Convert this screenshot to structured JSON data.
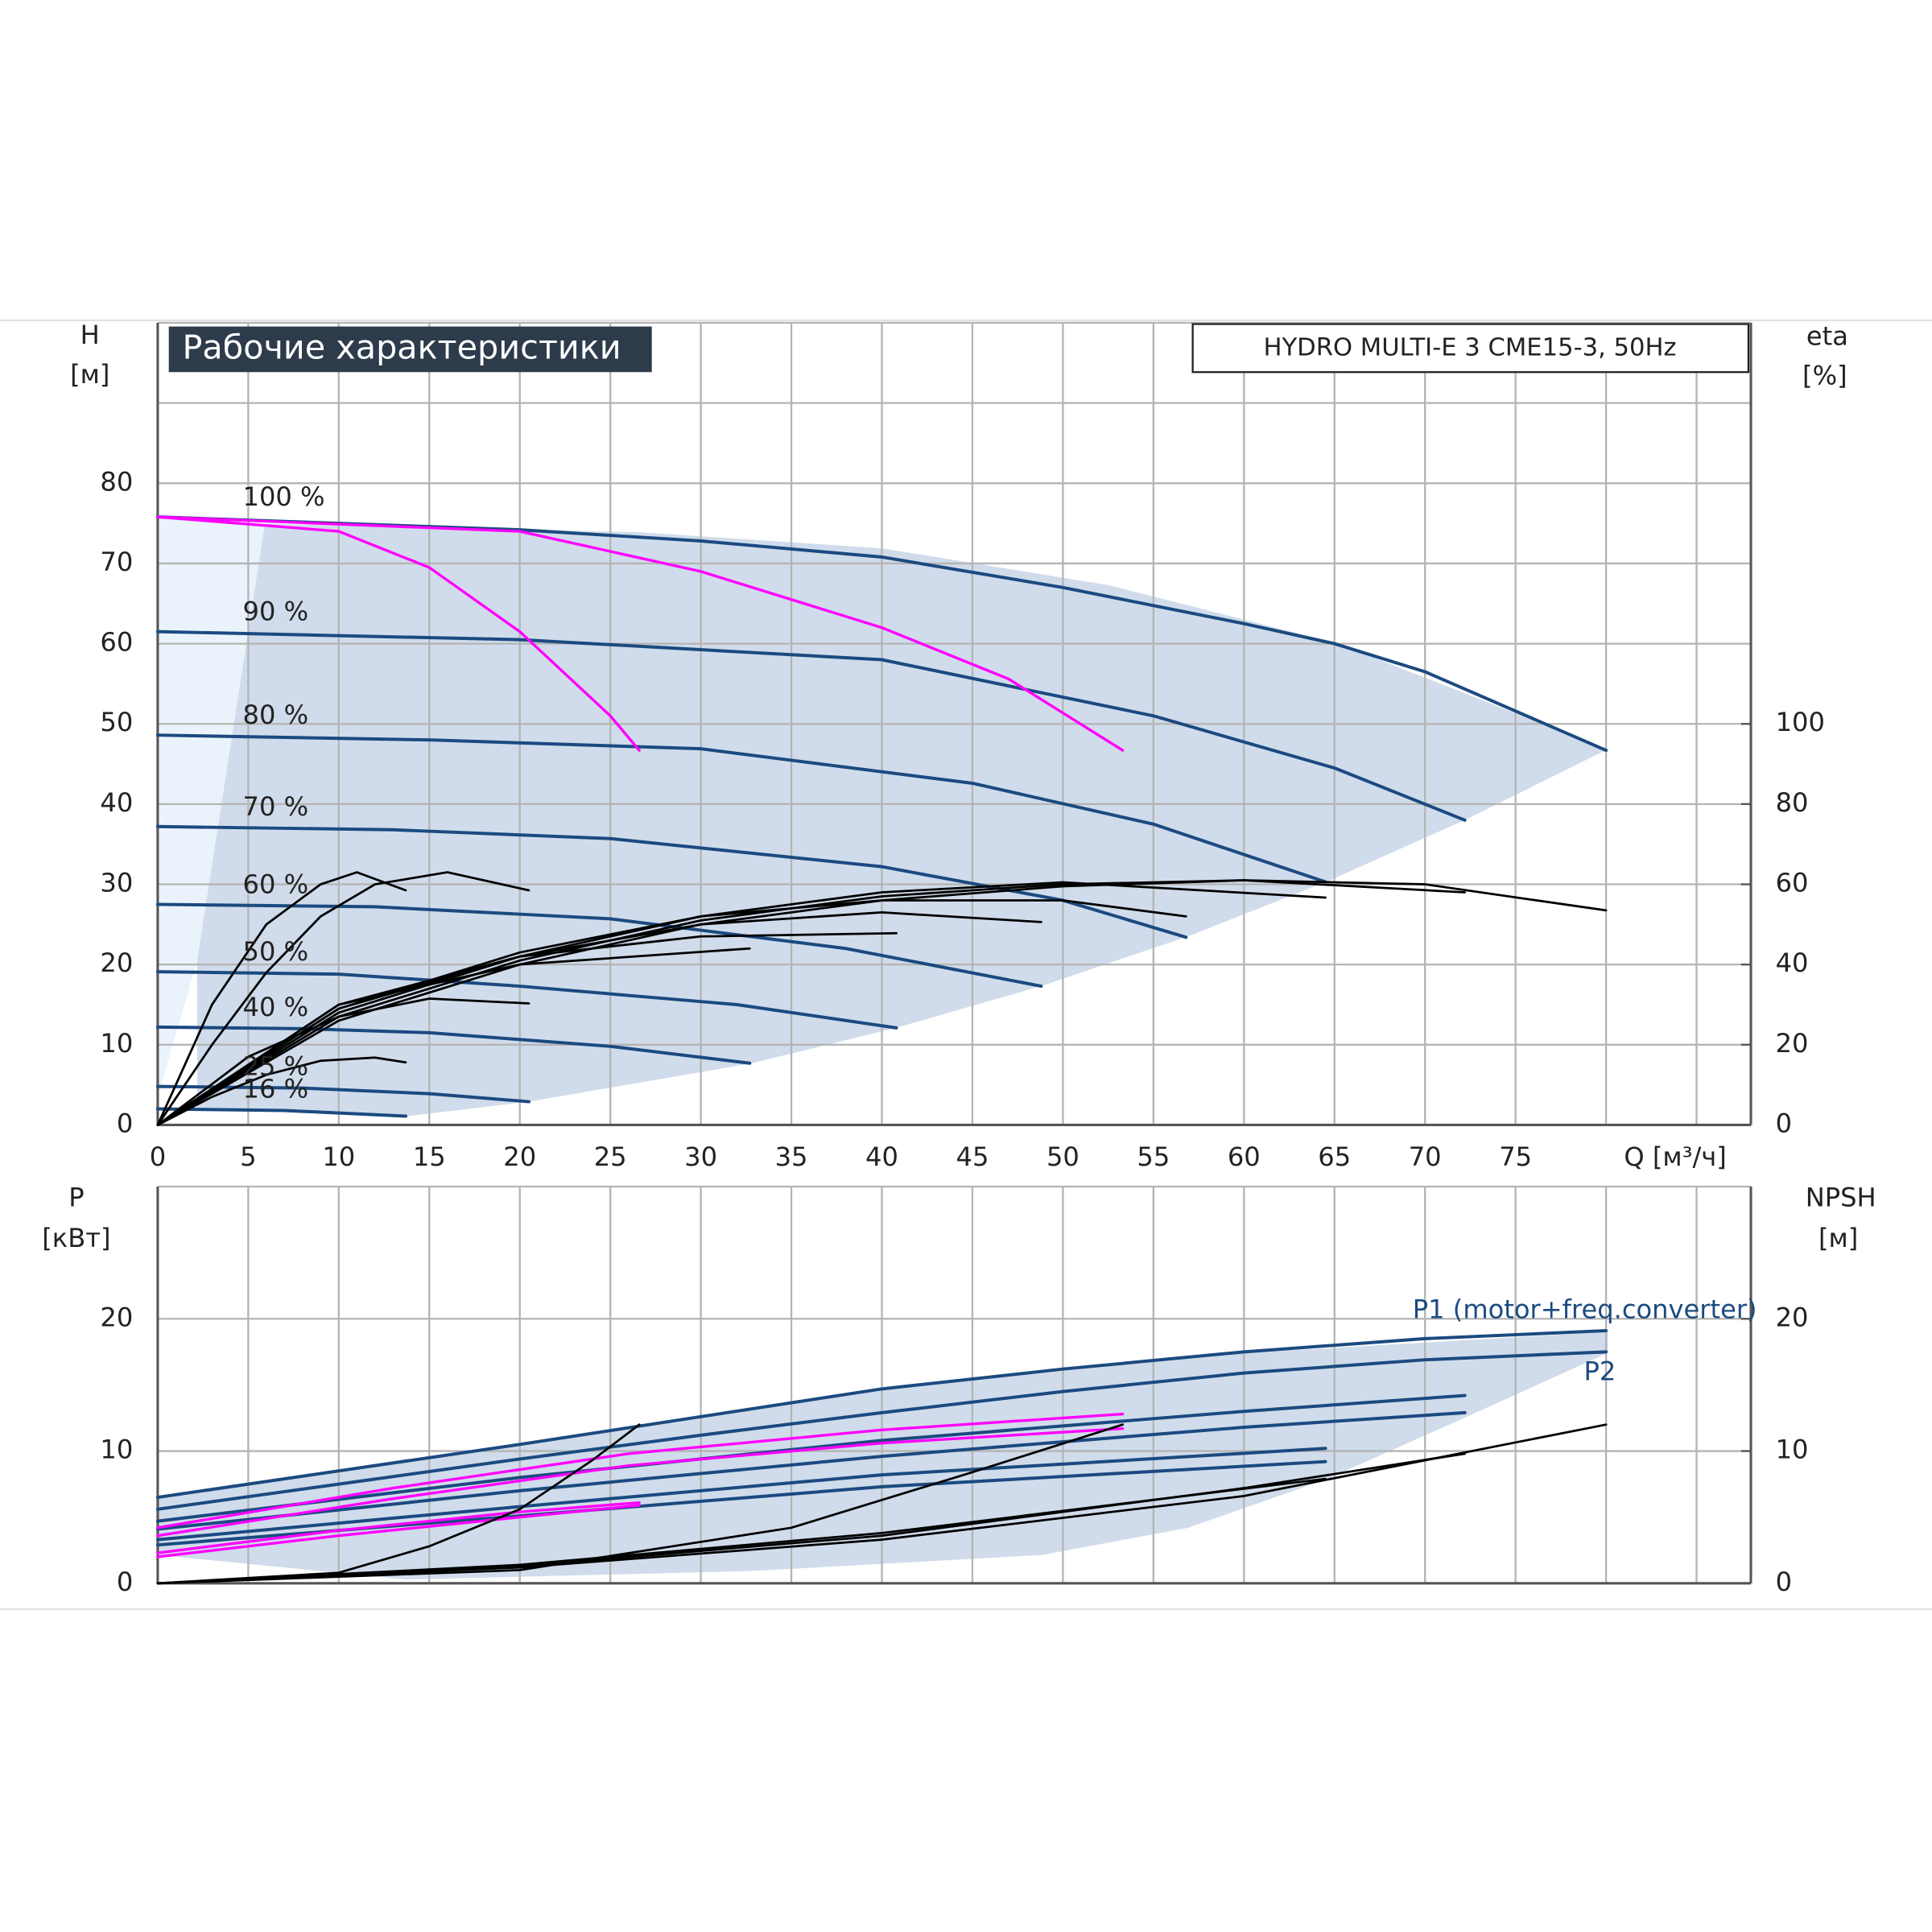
{
  "chart_data": [
    {
      "type": "line",
      "title": "Рабочие характеристики",
      "subtitle": "HYDRO MULTI-E 3 CME15-3, 50Hz",
      "y_label": "H",
      "y_unit": "[м]",
      "y2_label": "eta",
      "y2_unit": "[%]",
      "x_label": "Q [м³/ч]",
      "xlim": [
        0,
        88
      ],
      "xticks": [
        0,
        5,
        10,
        15,
        20,
        25,
        30,
        35,
        40,
        45,
        50,
        55,
        60,
        65,
        70,
        75
      ],
      "ylim": [
        0,
        100
      ],
      "yticks": [
        0,
        10,
        20,
        30,
        40,
        50,
        60,
        70,
        80
      ],
      "y2lim": [
        0,
        200
      ],
      "y2ticks": [
        0,
        20,
        40,
        60,
        80,
        100
      ],
      "grid": true,
      "series": [
        {
          "name": "100 %",
          "color": "#1b4a80",
          "x": [
            0,
            10,
            20,
            30,
            40,
            50,
            60,
            65,
            70,
            80
          ],
          "values": [
            75.8,
            75,
            74.2,
            72.8,
            70.8,
            67,
            62.5,
            60,
            56.5,
            46.7
          ]
        },
        {
          "name": "90 %",
          "color": "#1b4a80",
          "x": [
            0,
            20,
            40,
            55,
            65,
            72.2
          ],
          "values": [
            61.5,
            60.5,
            58,
            51,
            44.5,
            38
          ]
        },
        {
          "name": "80 %",
          "color": "#1b4a80",
          "x": [
            0,
            15,
            30,
            45,
            55,
            64.5
          ],
          "values": [
            48.6,
            48,
            46.9,
            42.6,
            37.5,
            30.3
          ]
        },
        {
          "name": "70 %",
          "color": "#1b4a80",
          "x": [
            0,
            13,
            25,
            40,
            50,
            56.8
          ],
          "values": [
            37.2,
            36.8,
            35.7,
            32.2,
            28,
            23.4
          ]
        },
        {
          "name": "60 %",
          "color": "#1b4a80",
          "x": [
            0,
            12,
            25,
            38,
            48.8
          ],
          "values": [
            27.5,
            27.2,
            25.7,
            22,
            17.3
          ]
        },
        {
          "name": "50 %",
          "color": "#1b4a80",
          "x": [
            0,
            10,
            20,
            32,
            40.8
          ],
          "values": [
            19.1,
            18.8,
            17.3,
            15,
            12.1
          ]
        },
        {
          "name": "40 %",
          "color": "#1b4a80",
          "x": [
            0,
            8,
            15,
            25,
            32.7
          ],
          "values": [
            12.2,
            12,
            11.5,
            9.8,
            7.7
          ]
        },
        {
          "name": "25 %",
          "color": "#1b4a80",
          "x": [
            0,
            8,
            15,
            20.5
          ],
          "values": [
            4.8,
            4.6,
            3.9,
            2.9
          ]
        },
        {
          "name": "16 %",
          "color": "#1b4a80",
          "x": [
            0,
            7,
            13.7
          ],
          "values": [
            2,
            1.8,
            1.1
          ]
        },
        {
          "color": "#ff00ff",
          "x": [
            0,
            10,
            15,
            20,
            25,
            26.6
          ],
          "values": [
            75.8,
            74,
            69.5,
            61.5,
            51,
            46.7
          ]
        },
        {
          "color": "#ff00ff",
          "x": [
            0,
            20,
            30,
            40,
            47,
            53.3
          ],
          "values": [
            75.8,
            74,
            69,
            62,
            55.6,
            46.7
          ]
        },
        {
          "color": "#000000",
          "axis": "y2",
          "x": [
            0,
            10,
            20,
            30,
            40,
            50,
            60,
            70,
            80
          ],
          "values": [
            0,
            26,
            40,
            50,
            56,
            59.5,
            61,
            60,
            53.5
          ]
        },
        {
          "color": "#000000",
          "axis": "y2",
          "x": [
            0,
            10,
            20,
            30,
            40,
            50,
            60,
            72.2
          ],
          "values": [
            0,
            27,
            41,
            51,
            57,
            60,
            61,
            58
          ]
        },
        {
          "color": "#000000",
          "axis": "y2",
          "x": [
            0,
            10,
            20,
            30,
            40,
            50,
            64.5
          ],
          "values": [
            0,
            28,
            42,
            52,
            58,
            60.5,
            56.7
          ]
        },
        {
          "color": "#000000",
          "axis": "y2",
          "x": [
            0,
            10,
            20,
            30,
            40,
            50,
            56.8
          ],
          "values": [
            0,
            29,
            43,
            52,
            56,
            56,
            52
          ]
        },
        {
          "color": "#000000",
          "axis": "y2",
          "x": [
            0,
            10,
            20,
            30,
            40,
            48.8
          ],
          "values": [
            0,
            29,
            42,
            50,
            53,
            50.6
          ]
        },
        {
          "color": "#000000",
          "axis": "y2",
          "x": [
            0,
            10,
            20,
            30,
            40.8
          ],
          "values": [
            0,
            30,
            42,
            47,
            47.8
          ]
        },
        {
          "color": "#000000",
          "axis": "y2",
          "x": [
            0,
            10,
            20,
            32.7
          ],
          "values": [
            0,
            30,
            40,
            44
          ]
        },
        {
          "color": "#000000",
          "axis": "y2",
          "x": [
            0,
            5,
            10,
            15,
            20.5
          ],
          "values": [
            0,
            17,
            27,
            31.5,
            30.3
          ]
        },
        {
          "color": "#000000",
          "axis": "y2",
          "x": [
            0,
            3,
            6,
            9,
            12,
            13.7
          ],
          "values": [
            0,
            7,
            12.5,
            16,
            16.8,
            15.6
          ]
        },
        {
          "color": "#000000",
          "axis": "y2",
          "x": [
            0,
            3,
            6,
            9,
            11,
            13.7
          ],
          "values": [
            0,
            30,
            50,
            60,
            63,
            58.5
          ]
        },
        {
          "color": "#000000",
          "axis": "y2",
          "x": [
            0,
            3,
            6,
            9,
            12,
            16,
            20.5
          ],
          "values": [
            0,
            20,
            38,
            52,
            60,
            63,
            58.5
          ]
        }
      ]
    },
    {
      "type": "line",
      "y_label": "P",
      "y_unit": "[кВт]",
      "y2_label": "NPSH",
      "y2_unit": "[м]",
      "xlim": [
        0,
        88
      ],
      "ylim": [
        0,
        30
      ],
      "yticks": [
        0,
        10,
        20
      ],
      "y2lim": [
        0,
        30
      ],
      "y2ticks": [
        0,
        10,
        20
      ],
      "grid": true,
      "series": [
        {
          "name": "P1 (motor+freq.converter)",
          "color": "#1b4a80",
          "x": [
            0,
            10,
            20,
            30,
            40,
            50,
            60,
            70,
            80
          ],
          "values": [
            6.5,
            8.5,
            10.5,
            12.6,
            14.7,
            16.2,
            17.5,
            18.5,
            19.1
          ]
        },
        {
          "name": "P2",
          "color": "#1b4a80",
          "x": [
            0,
            10,
            20,
            30,
            40,
            50,
            60,
            70,
            80
          ],
          "values": [
            5.6,
            7.5,
            9.4,
            11.2,
            12.9,
            14.5,
            15.9,
            16.9,
            17.5
          ]
        },
        {
          "color": "#1b4a80",
          "x": [
            0,
            20,
            40,
            60,
            72.2
          ],
          "values": [
            4.7,
            8,
            10.8,
            13,
            14.2
          ]
        },
        {
          "color": "#1b4a80",
          "x": [
            0,
            20,
            40,
            60,
            72.2
          ],
          "values": [
            4.1,
            7,
            9.6,
            11.8,
            12.9
          ]
        },
        {
          "color": "#1b4a80",
          "x": [
            0,
            20,
            40,
            64.5
          ],
          "values": [
            3.3,
            5.8,
            8.2,
            10.2
          ]
        },
        {
          "color": "#1b4a80",
          "x": [
            0,
            20,
            40,
            64.5
          ],
          "values": [
            2.9,
            5.1,
            7.3,
            9.2
          ]
        },
        {
          "color": "#ff00ff",
          "x": [
            0,
            13,
            26,
            40,
            53.3
          ],
          "values": [
            4.2,
            7.2,
            9.8,
            11.6,
            12.8
          ]
        },
        {
          "color": "#ff00ff",
          "x": [
            0,
            13,
            26,
            40,
            53.3
          ],
          "values": [
            3.6,
            6.4,
            8.9,
            10.6,
            11.7
          ]
        },
        {
          "color": "#ff00ff",
          "x": [
            0,
            10,
            20,
            26.6
          ],
          "values": [
            2.3,
            4,
            5.4,
            6.1
          ]
        },
        {
          "color": "#ff00ff",
          "x": [
            0,
            10,
            20,
            26.6
          ],
          "values": [
            2,
            3.6,
            5,
            5.9
          ]
        },
        {
          "color": "#000000",
          "axis": "y2",
          "x": [
            0,
            20,
            40,
            60,
            80
          ],
          "values": [
            0,
            1.2,
            3.3,
            6.6,
            12
          ]
        },
        {
          "color": "#000000",
          "axis": "y2",
          "x": [
            0,
            20,
            40,
            60,
            72.2
          ],
          "values": [
            0,
            1.3,
            3.6,
            7.2,
            9.8
          ]
        },
        {
          "color": "#000000",
          "axis": "y2",
          "x": [
            0,
            20,
            40,
            64.5
          ],
          "values": [
            0,
            1.4,
            3.8,
            7.9
          ]
        },
        {
          "color": "#000000",
          "axis": "y2",
          "x": [
            0,
            20,
            35,
            45,
            53.3
          ],
          "values": [
            0,
            1,
            4.2,
            8.4,
            12
          ]
        },
        {
          "color": "#000000",
          "axis": "y2",
          "x": [
            0,
            10,
            15,
            20,
            24,
            26.6
          ],
          "values": [
            0,
            0.8,
            2.8,
            5.6,
            9.3,
            12
          ]
        }
      ]
    }
  ]
}
